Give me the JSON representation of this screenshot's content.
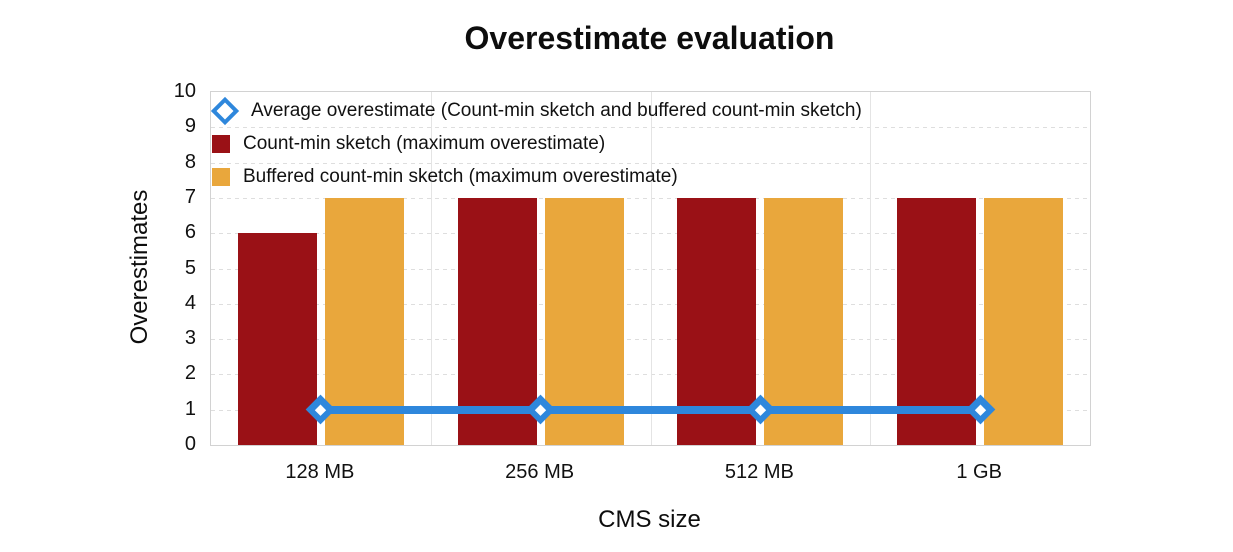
{
  "title": "Overestimate evaluation",
  "colors": {
    "count_min_bar": "#9A1116",
    "buffered_bar": "#E9A73C",
    "average_line": "#2E87DC",
    "gridline": "#dedede",
    "plot_border": "#d2d2d2"
  },
  "legend": [
    {
      "label": "Average overestimate (Count-min sketch and buffered count-min sketch)",
      "marker": "diamond",
      "color": "#2E87DC"
    },
    {
      "label": "Count-min sketch (maximum overestimate)",
      "marker": "square",
      "color": "#9A1116"
    },
    {
      "label": "Buffered count-min sketch (maximum overestimate)",
      "marker": "square",
      "color": "#E9A73C"
    }
  ],
  "chart_data": {
    "type": "bar",
    "title": "Overestimate evaluation",
    "xlabel": "CMS size",
    "ylabel": "Overestimates",
    "categories": [
      "128 MB",
      "256 MB",
      "512 MB",
      "1 GB"
    ],
    "series": [
      {
        "name": "Count-min sketch (maximum overestimate)",
        "type": "bar",
        "color": "#9A1116",
        "values": [
          6,
          7,
          7,
          7
        ]
      },
      {
        "name": "Buffered count-min sketch (maximum overestimate)",
        "type": "bar",
        "color": "#E9A73C",
        "values": [
          7,
          7,
          7,
          7
        ]
      },
      {
        "name": "Average overestimate (Count-min sketch and buffered count-min sketch)",
        "type": "line",
        "color": "#2E87DC",
        "values": [
          1,
          1,
          1,
          1
        ]
      }
    ],
    "ylim": [
      0,
      10
    ],
    "ytick_step": 1,
    "yticks": [
      0,
      1,
      2,
      3,
      4,
      5,
      6,
      7,
      8,
      9,
      10
    ],
    "grid": true,
    "grid_style": {
      "horizontal": "dashed",
      "vertical": "solid-category-boundaries"
    },
    "legend_position": "top-left-inside"
  }
}
